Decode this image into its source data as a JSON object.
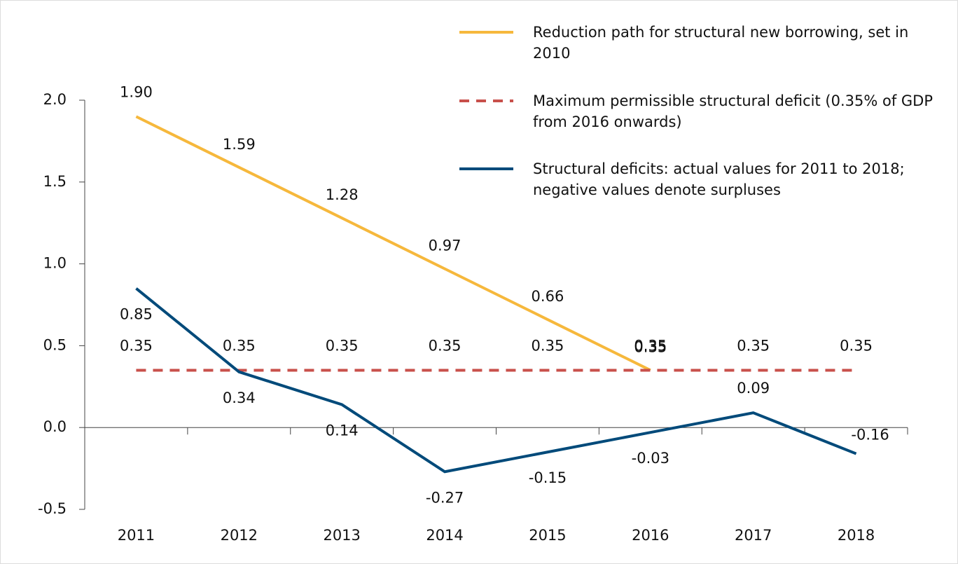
{
  "chart_data": {
    "type": "line",
    "categories": [
      "2011",
      "2012",
      "2013",
      "2014",
      "2015",
      "2016",
      "2017",
      "2018"
    ],
    "series": [
      {
        "name": "Reduction path for structural new borrowing, set in 2010",
        "color": "#f6b83c",
        "dash": false,
        "values": [
          1.9,
          1.59,
          1.28,
          0.97,
          0.66,
          0.35,
          null,
          null
        ],
        "value_labels": [
          "1.90",
          "1.59",
          "1.28",
          "0.97",
          "0.66",
          "0.35",
          null,
          null
        ]
      },
      {
        "name": "Maximum permissible structural deficit (0.35% of GDP from 2016 onwards)",
        "color": "#c8504b",
        "dash": true,
        "values": [
          0.35,
          0.35,
          0.35,
          0.35,
          0.35,
          0.35,
          0.35,
          0.35
        ]
      },
      {
        "name": "Structural deficits: actual values for 2011 to 2018; negative values denote surpluses",
        "color": "#004a7a",
        "dash": false,
        "values": [
          0.85,
          0.34,
          0.14,
          -0.27,
          -0.15,
          -0.03,
          0.09,
          -0.16
        ]
      }
    ],
    "ylim": [
      -0.5,
      2.0
    ],
    "yticks": [
      -0.5,
      {
        "value": 0,
        "label": "0.0"
      },
      0.5,
      {
        "value": 1,
        "label": "1.0"
      },
      1.5,
      {
        "value": 2,
        "label": "2.0"
      }
    ]
  }
}
